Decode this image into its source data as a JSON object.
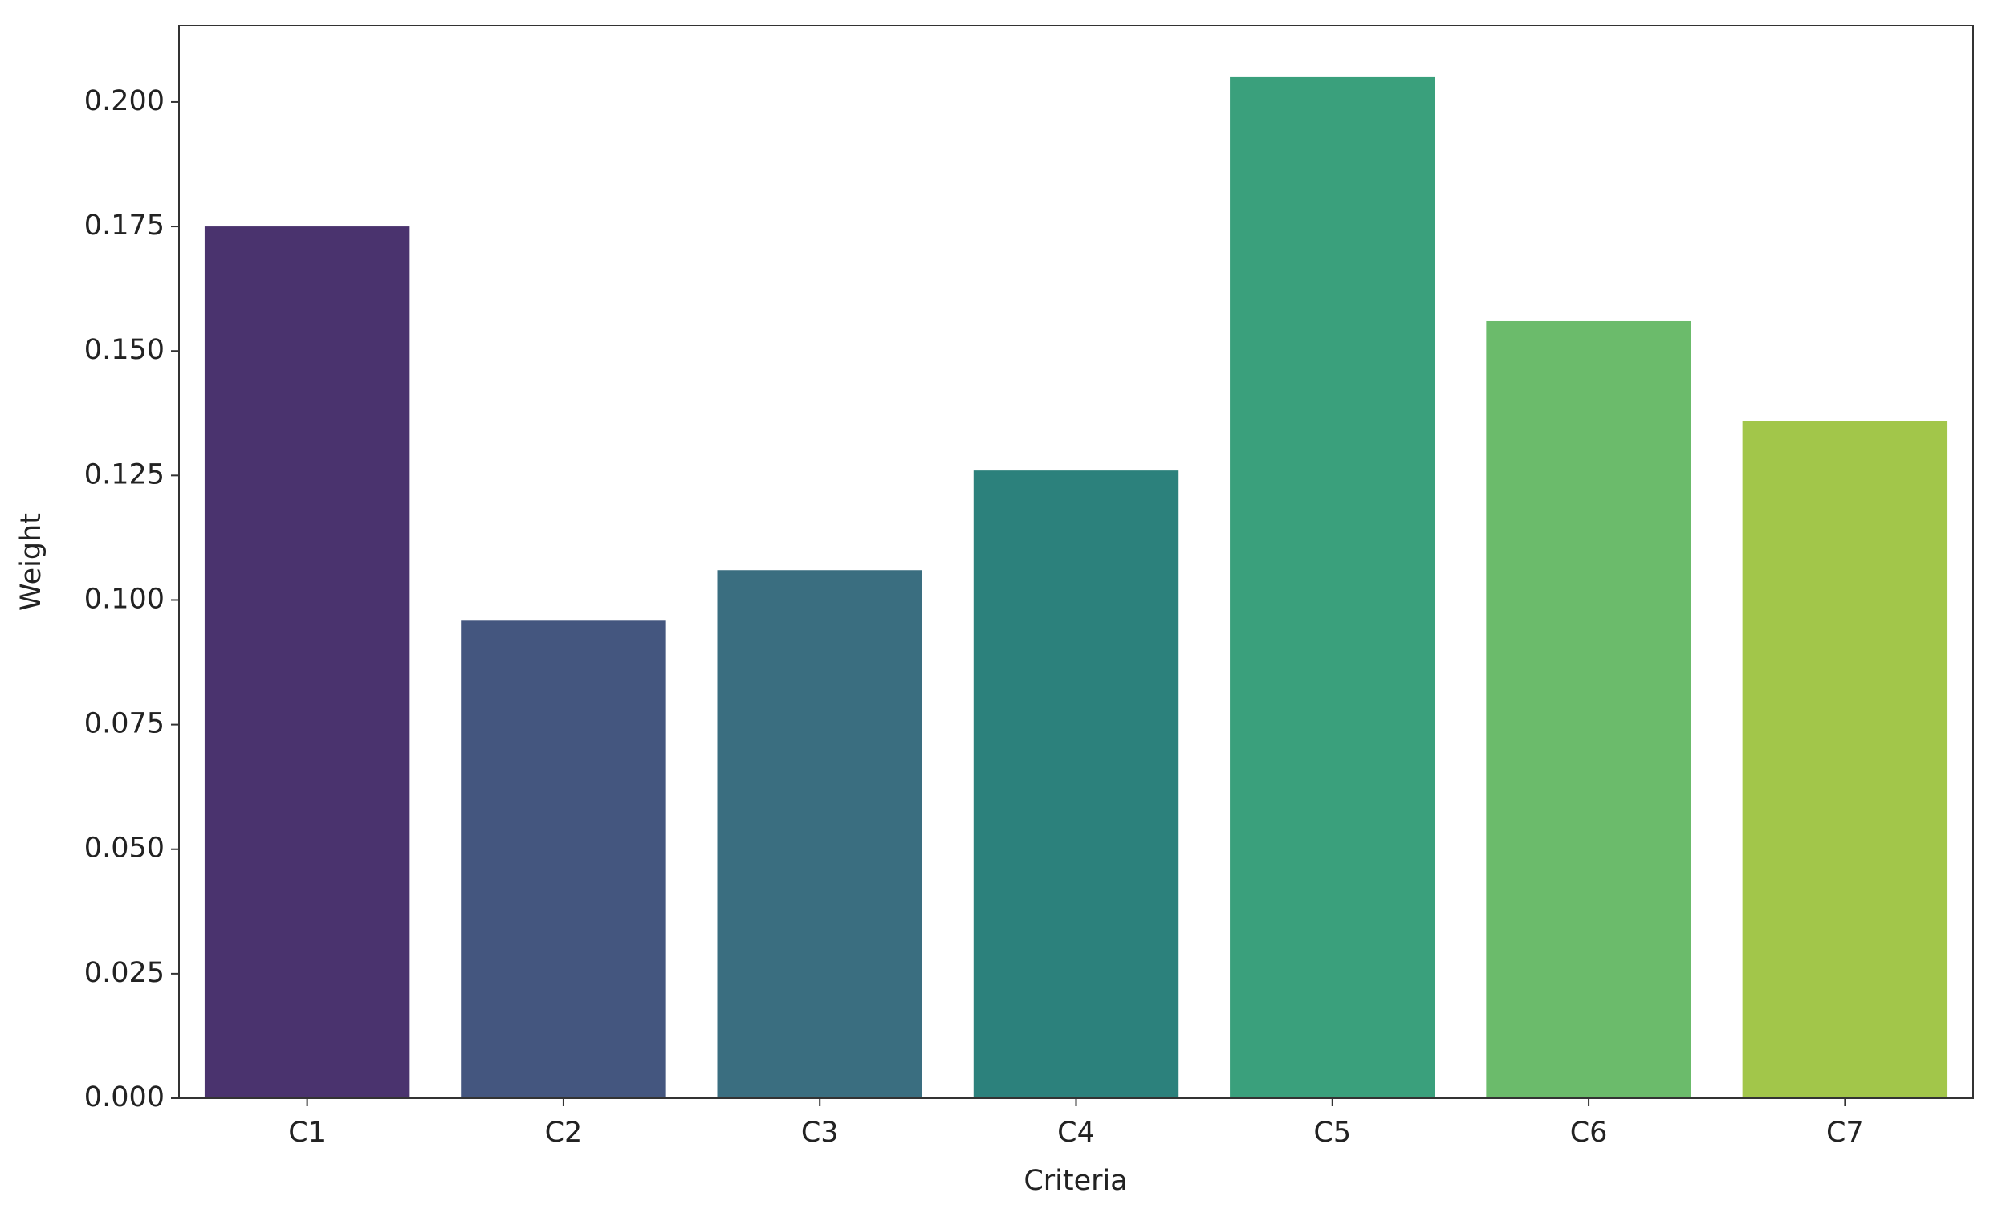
{
  "chart_data": {
    "type": "bar",
    "x_label": "Criteria",
    "y_label": "Weight",
    "categories": [
      "C1",
      "C2",
      "C3",
      "C4",
      "C5",
      "C6",
      "C7"
    ],
    "values": [
      0.175,
      0.096,
      0.106,
      0.126,
      0.205,
      0.156,
      0.136
    ],
    "colors": [
      "#4a336e",
      "#44567f",
      "#3a6e80",
      "#2c817c",
      "#3aa07c",
      "#6bbb6b",
      "#a2c64a"
    ],
    "ylim": [
      0,
      0.2153
    ],
    "yticks": [
      {
        "value": 0,
        "label": "0.000"
      },
      {
        "value": 0.025,
        "label": "0.025"
      },
      {
        "value": 0.05,
        "label": "0.050"
      },
      {
        "value": 0.075,
        "label": "0.075"
      },
      {
        "value": 0.1,
        "label": "0.100"
      },
      {
        "value": 0.125,
        "label": "0.125"
      },
      {
        "value": 0.15,
        "label": "0.150"
      },
      {
        "value": 0.175,
        "label": "0.175"
      },
      {
        "value": 0.2,
        "label": "0.200"
      }
    ]
  }
}
